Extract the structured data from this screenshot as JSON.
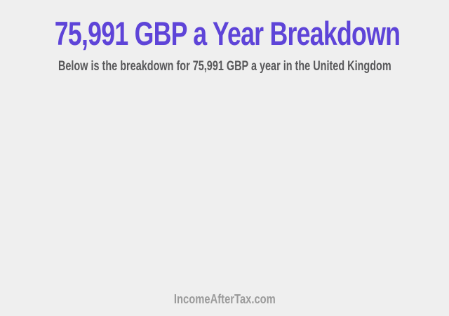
{
  "page": {
    "background_color": "#efefef",
    "header": {
      "title": "75,991 GBP a Year Breakdown",
      "title_color": "#5e44d8",
      "subtitle": "Below is the breakdown for 75,991 GBP a year in the United Kingdom",
      "subtitle_color": "#58585a"
    },
    "footer": {
      "brand": "IncomeAfterTax.com",
      "color": "#9b9b9b"
    }
  }
}
